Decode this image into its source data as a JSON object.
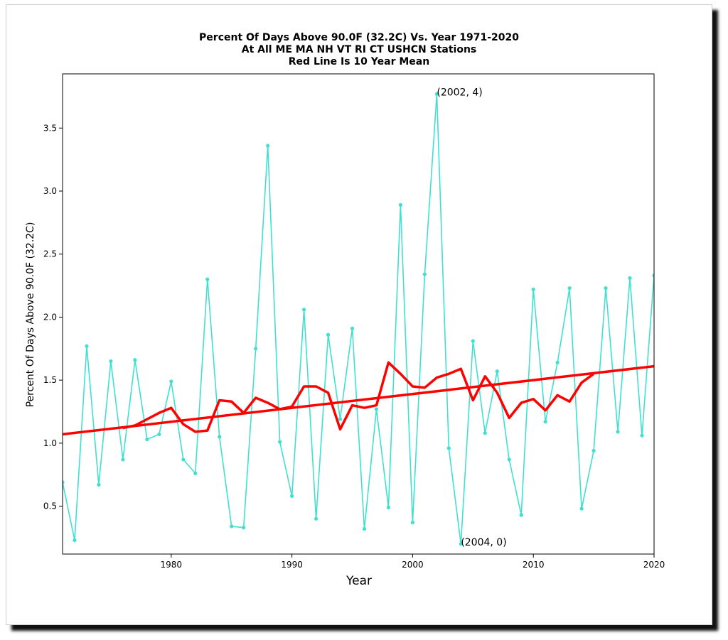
{
  "chart_data": {
    "type": "line",
    "title_lines": [
      "Percent Of Days Above 90.0F (32.2C) Vs. Year 1971-2020",
      "At All ME MA NH VT RI CT USHCN Stations",
      "Red Line Is 10 Year Mean"
    ],
    "xlabel": "Year",
    "ylabel": "Percent Of Days Above 90.0F (32.2C)",
    "xlim": [
      1971,
      2020
    ],
    "ylim": [
      0.12,
      3.93
    ],
    "xticks": [
      1980,
      1990,
      2000,
      2010,
      2020
    ],
    "yticks": [
      0.5,
      1.0,
      1.5,
      2.0,
      2.5,
      3.0,
      3.5
    ],
    "grid": false,
    "colors": {
      "series": "#40e0d0",
      "mean": "#ff0000",
      "trend": "#ff0000"
    },
    "series": [
      {
        "x": [
          1971,
          1972,
          1973,
          1974,
          1975,
          1976,
          1977,
          1978,
          1979,
          1980,
          1981,
          1982,
          1983,
          1984,
          1985,
          1986,
          1987,
          1988,
          1989,
          1990,
          1991,
          1992,
          1993,
          1994,
          1995,
          1996,
          1997,
          1998,
          1999,
          2000,
          2001,
          2002,
          2003,
          2004,
          2005,
          2006,
          2007,
          2008,
          2009,
          2010,
          2011,
          2012,
          2013,
          2014,
          2015,
          2016,
          2017,
          2018,
          2019,
          2020
        ],
        "y": [
          0.69,
          0.23,
          1.77,
          0.67,
          1.65,
          0.87,
          1.66,
          1.03,
          1.07,
          1.49,
          0.87,
          0.76,
          2.3,
          1.05,
          0.34,
          0.33,
          1.75,
          3.36,
          1.01,
          0.58,
          2.06,
          0.4,
          1.86,
          1.19,
          1.91,
          0.32,
          1.27,
          0.49,
          2.89,
          0.37,
          2.34,
          3.77,
          0.96,
          0.2,
          1.81,
          1.08,
          1.57,
          0.87,
          0.43,
          2.22,
          1.17,
          1.64,
          2.23,
          0.48,
          0.94,
          2.23,
          1.09,
          2.31,
          1.06,
          2.33
        ]
      },
      {
        "x": [
          1976,
          1977,
          1978,
          1979,
          1980,
          1981,
          1982,
          1983,
          1984,
          1985,
          1986,
          1987,
          1988,
          1989,
          1990,
          1991,
          1992,
          1993,
          1994,
          1995,
          1996,
          1997,
          1998,
          1999,
          2000,
          2001,
          2002,
          2003,
          2004,
          2005,
          2006,
          2007,
          2008,
          2009,
          2010,
          2011,
          2012,
          2013,
          2014,
          2015
        ],
        "y": [
          1.12,
          1.14,
          1.19,
          1.24,
          1.28,
          1.15,
          1.09,
          1.1,
          1.34,
          1.33,
          1.24,
          1.36,
          1.32,
          1.27,
          1.29,
          1.45,
          1.45,
          1.4,
          1.11,
          1.3,
          1.28,
          1.3,
          1.64,
          1.55,
          1.45,
          1.44,
          1.52,
          1.55,
          1.59,
          1.34,
          1.53,
          1.4,
          1.2,
          1.32,
          1.35,
          1.26,
          1.38,
          1.33,
          1.48,
          1.55
        ]
      },
      {
        "x": [
          1971,
          2020
        ],
        "y": [
          1.07,
          1.61
        ]
      }
    ],
    "annotations": [
      {
        "text": "(2002, 4)",
        "x": 2002,
        "y": 3.77
      },
      {
        "text": "(2004, 0)",
        "x": 2004,
        "y": 0.2
      }
    ]
  }
}
